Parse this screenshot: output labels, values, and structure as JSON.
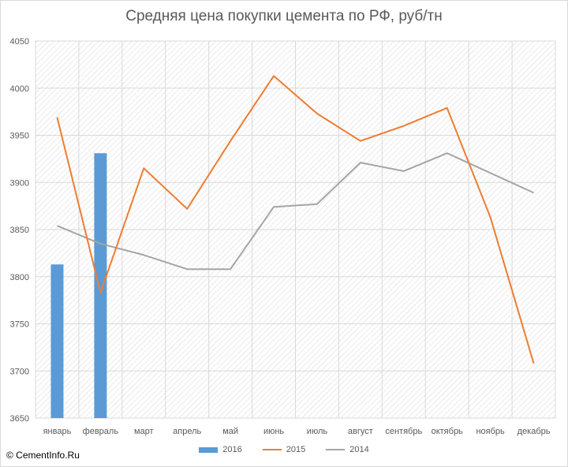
{
  "chart_data": {
    "type": "bar+line",
    "title": "Средняя цена покупки цемента по РФ, руб/тн",
    "categories": [
      "январь",
      "февраль",
      "март",
      "апрель",
      "май",
      "июнь",
      "июль",
      "август",
      "сентябрь",
      "октябрь",
      "ноябрь",
      "декабрь"
    ],
    "ylim": [
      3650,
      4050
    ],
    "yticks": [
      3650,
      3700,
      3750,
      3800,
      3850,
      3900,
      3950,
      4000,
      4050
    ],
    "grid": true,
    "legend_position": "bottom",
    "series": [
      {
        "name": "2016",
        "type": "bar",
        "color": "#5b9bd5",
        "values": [
          3813,
          3931,
          null,
          null,
          null,
          null,
          null,
          null,
          null,
          null,
          null,
          null
        ]
      },
      {
        "name": "2015",
        "type": "line",
        "color": "#ed7d31",
        "values": [
          3969,
          3783,
          3915,
          3872,
          3944,
          4013,
          3973,
          3944,
          3960,
          3979,
          3863,
          3708
        ]
      },
      {
        "name": "2014",
        "type": "line",
        "color": "#a5a5a5",
        "values": [
          3854,
          3835,
          3823,
          3808,
          3808,
          3874,
          3877,
          3921,
          3912,
          3931,
          3910,
          3889
        ]
      }
    ]
  },
  "copyright": "© CementInfo.Ru"
}
